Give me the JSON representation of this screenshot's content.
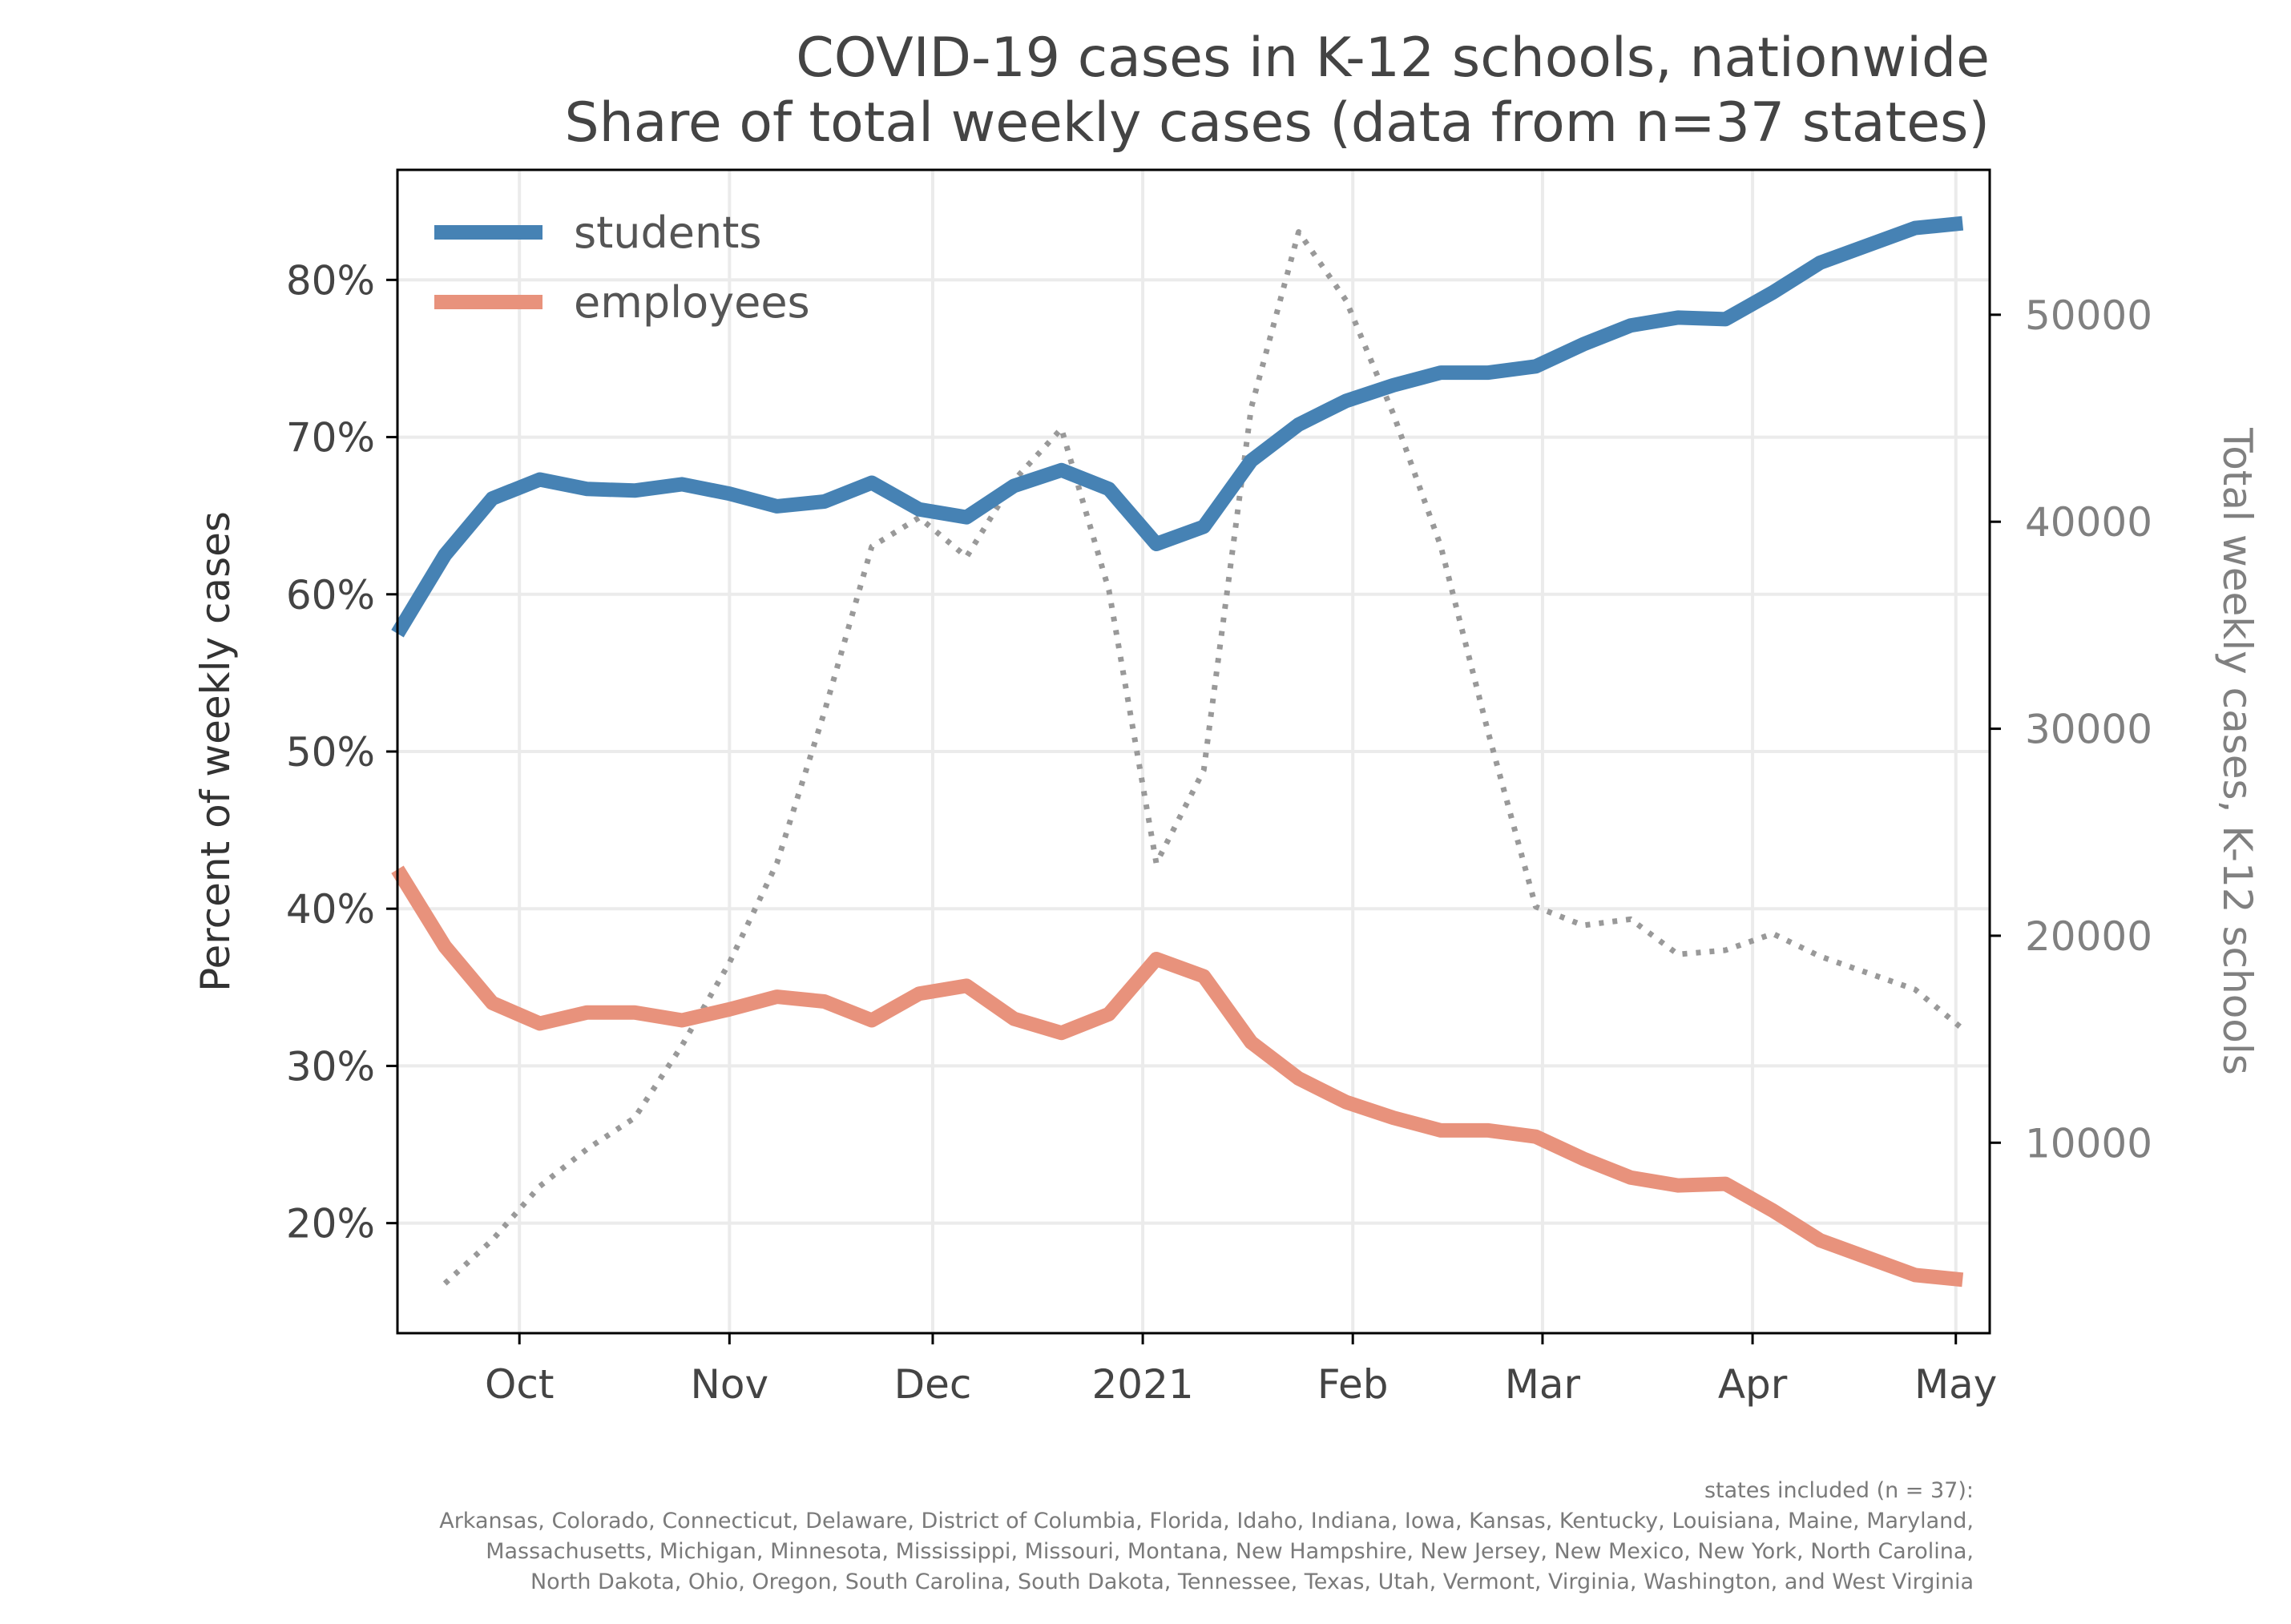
{
  "chart_data": {
    "type": "line",
    "title": "COVID-19 cases in K-12 schools, nationwide",
    "subtitle": "Share of total weekly cases (data from n=37 states)",
    "ylabel": "Percent of weekly cases",
    "ylabel_right": "Total weekly cases, K-12 schools",
    "xlim": [
      "2020-09-13",
      "2021-05-06"
    ],
    "ylim": [
      13,
      87
    ],
    "ylim_right": [
      800,
      57000
    ],
    "x_ticks": [
      {
        "date": "2020-10-01",
        "label": "Oct"
      },
      {
        "date": "2020-11-01",
        "label": "Nov"
      },
      {
        "date": "2020-12-01",
        "label": "Dec"
      },
      {
        "date": "2021-01-01",
        "label": "2021"
      },
      {
        "date": "2021-02-01",
        "label": "Feb"
      },
      {
        "date": "2021-03-01",
        "label": "Mar"
      },
      {
        "date": "2021-04-01",
        "label": "Apr"
      },
      {
        "date": "2021-05-01",
        "label": "May"
      }
    ],
    "y_ticks": [
      {
        "value": 20,
        "label": "20%"
      },
      {
        "value": 30,
        "label": "30%"
      },
      {
        "value": 40,
        "label": "40%"
      },
      {
        "value": 50,
        "label": "50%"
      },
      {
        "value": 60,
        "label": "60%"
      },
      {
        "value": 70,
        "label": "70%"
      },
      {
        "value": 80,
        "label": "80%"
      }
    ],
    "y_ticks_right": [
      {
        "value": 10000,
        "label": "10000"
      },
      {
        "value": 20000,
        "label": "20000"
      },
      {
        "value": 30000,
        "label": "30000"
      },
      {
        "value": 40000,
        "label": "40000"
      },
      {
        "value": 50000,
        "label": "50000"
      }
    ],
    "grid": true,
    "legend_position": "top-left",
    "series": [
      {
        "name": "students",
        "color": "#4682b4",
        "axis": "left",
        "style": "solid",
        "x": [
          "2020-09-13",
          "2020-09-20",
          "2020-09-27",
          "2020-10-04",
          "2020-10-11",
          "2020-10-18",
          "2020-10-25",
          "2020-11-01",
          "2020-11-08",
          "2020-11-15",
          "2020-11-22",
          "2020-11-29",
          "2020-12-06",
          "2020-12-13",
          "2020-12-20",
          "2020-12-27",
          "2021-01-03",
          "2021-01-10",
          "2021-01-17",
          "2021-01-24",
          "2021-01-31",
          "2021-02-07",
          "2021-02-14",
          "2021-02-21",
          "2021-02-28",
          "2021-03-07",
          "2021-03-14",
          "2021-03-21",
          "2021-03-28",
          "2021-04-04",
          "2021-04-11",
          "2021-04-18",
          "2021-04-25",
          "2021-05-02"
        ],
        "values": [
          57.5,
          62.5,
          66.1,
          67.3,
          66.7,
          66.6,
          67.0,
          66.4,
          65.6,
          65.9,
          67.1,
          65.4,
          64.9,
          66.9,
          67.9,
          66.7,
          63.2,
          64.3,
          68.5,
          70.8,
          72.3,
          73.3,
          74.1,
          74.1,
          74.5,
          75.9,
          77.1,
          77.6,
          77.5,
          79.2,
          81.1,
          82.2,
          83.3,
          83.6
        ]
      },
      {
        "name": "employees",
        "color": "#e8927c",
        "axis": "left",
        "style": "solid",
        "x": [
          "2020-09-13",
          "2020-09-20",
          "2020-09-27",
          "2020-10-04",
          "2020-10-11",
          "2020-10-18",
          "2020-10-25",
          "2020-11-01",
          "2020-11-08",
          "2020-11-15",
          "2020-11-22",
          "2020-11-29",
          "2020-12-06",
          "2020-12-13",
          "2020-12-20",
          "2020-12-27",
          "2021-01-03",
          "2021-01-10",
          "2021-01-17",
          "2021-01-24",
          "2021-01-31",
          "2021-02-07",
          "2021-02-14",
          "2021-02-21",
          "2021-02-28",
          "2021-03-07",
          "2021-03-14",
          "2021-03-21",
          "2021-03-28",
          "2021-04-04",
          "2021-04-11",
          "2021-04-18",
          "2021-04-25",
          "2021-05-02"
        ],
        "values": [
          42.5,
          37.6,
          34.0,
          32.7,
          33.4,
          33.4,
          32.9,
          33.6,
          34.4,
          34.1,
          32.9,
          34.6,
          35.1,
          33.0,
          32.1,
          33.3,
          36.8,
          35.7,
          31.5,
          29.2,
          27.7,
          26.7,
          25.9,
          25.9,
          25.5,
          24.1,
          22.9,
          22.4,
          22.5,
          20.8,
          18.9,
          17.8,
          16.7,
          16.4
        ]
      },
      {
        "name": "",
        "color": "#999999",
        "axis": "right",
        "style": "dotted",
        "x": [
          "2020-09-20",
          "2020-09-27",
          "2020-10-04",
          "2020-10-11",
          "2020-10-18",
          "2020-10-25",
          "2020-11-01",
          "2020-11-08",
          "2020-11-15",
          "2020-11-22",
          "2020-11-29",
          "2020-12-06",
          "2020-12-13",
          "2020-12-20",
          "2020-12-27",
          "2021-01-03",
          "2021-01-10",
          "2021-01-17",
          "2021-01-24",
          "2021-01-31",
          "2021-02-07",
          "2021-02-14",
          "2021-02-21",
          "2021-02-28",
          "2021-03-07",
          "2021-03-14",
          "2021-03-21",
          "2021-03-28",
          "2021-04-04",
          "2021-04-11",
          "2021-04-18",
          "2021-04-25",
          "2021-05-02"
        ],
        "values": [
          3200,
          5300,
          7900,
          9700,
          11200,
          14700,
          18700,
          23500,
          30800,
          38800,
          40200,
          38300,
          42000,
          44500,
          36700,
          23500,
          28000,
          45500,
          54000,
          50700,
          45200,
          38800,
          29800,
          21400,
          20500,
          20800,
          19100,
          19300,
          20100,
          19000,
          18200,
          17400,
          15500
        ]
      }
    ]
  },
  "legend": {
    "students": "students",
    "employees": "employees"
  },
  "footnote": {
    "heading": "states included (n = 37):",
    "line1": "Arkansas, Colorado, Connecticut, Delaware, District of Columbia, Florida, Idaho, Indiana, Iowa, Kansas, Kentucky, Louisiana, Maine, Maryland,",
    "line2": "Massachusetts, Michigan, Minnesota, Mississippi, Missouri, Montana, New Hampshire, New Jersey, New Mexico, New York, North Carolina,",
    "line3": "North Dakota, Ohio, Oregon, South Carolina, South Dakota, Tennessee, Texas, Utah, Vermont, Virginia, Washington, and West Virginia"
  }
}
